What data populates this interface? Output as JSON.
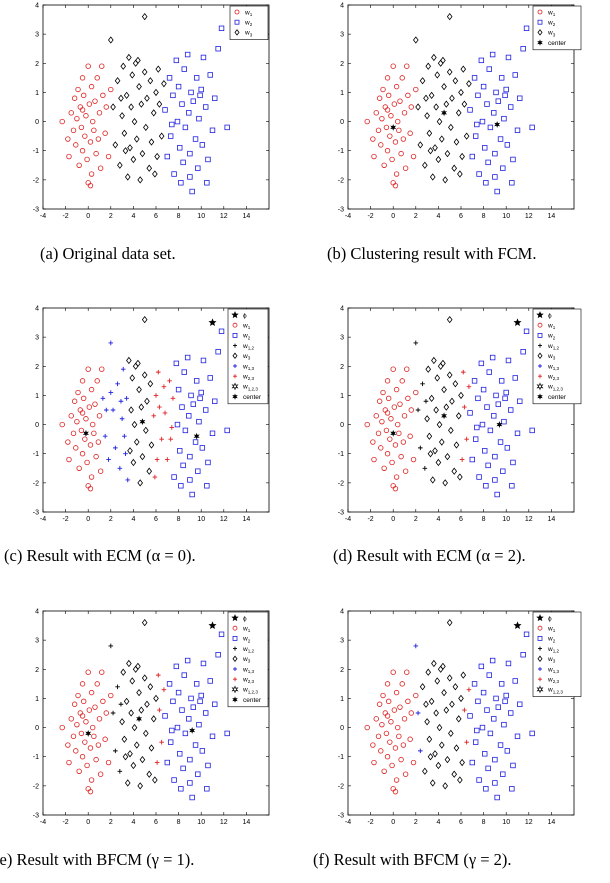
{
  "captions": [
    {
      "label": "(a)",
      "text": "Original data set."
    },
    {
      "label": "(b)",
      "text": "Clustering result with FCM."
    },
    {
      "label": "(c)",
      "text": "Result with ECM (α = 0)."
    },
    {
      "label": "(d)",
      "text": "Result with ECM (α = 2)."
    },
    {
      "label": "(e)",
      "text": "Result with BFCM (γ = 1)."
    },
    {
      "label": "(f)",
      "text": "Result with BFCM (γ = 2)."
    }
  ],
  "chart_data": [
    {
      "type": "scatter",
      "panel": "a",
      "xlim": [
        -4,
        16
      ],
      "ylim": [
        -3,
        4
      ],
      "xticks": [
        -4,
        -2,
        0,
        2,
        4,
        6,
        8,
        10,
        12,
        14
      ],
      "yticks": [
        -3,
        -2,
        -1,
        0,
        1,
        2,
        3,
        4
      ],
      "legend": [
        {
          "label": "w1",
          "sub": "1",
          "marker": "circle",
          "color": "#e02020"
        },
        {
          "label": "w2",
          "sub": "2",
          "marker": "square",
          "color": "#2020e0"
        },
        {
          "label": "w3",
          "sub": "3",
          "marker": "diamond",
          "color": "#000000"
        }
      ],
      "series": [
        {
          "name": "w1",
          "marker": "circle",
          "color": "#e02020",
          "points": [
            [
              -2.3,
              0
            ],
            [
              -1.8,
              -0.6
            ],
            [
              -1.7,
              -1.2
            ],
            [
              -1.5,
              0.3
            ],
            [
              -1.3,
              -0.3
            ],
            [
              -1.2,
              0.8
            ],
            [
              -1.1,
              -0.8
            ],
            [
              -1,
              0.1
            ],
            [
              -0.9,
              1.1
            ],
            [
              -0.8,
              -1.5
            ],
            [
              -0.7,
              0.5
            ],
            [
              -0.6,
              -0.2
            ],
            [
              -0.5,
              1.5
            ],
            [
              -0.5,
              -1
            ],
            [
              -0.4,
              0.9
            ],
            [
              -0.3,
              -0.5
            ],
            [
              -0.2,
              0.2
            ],
            [
              -0.1,
              -1.3
            ],
            [
              0,
              1.9
            ],
            [
              0,
              -2.1
            ],
            [
              0.1,
              0.6
            ],
            [
              0.2,
              -0.7
            ],
            [
              0.3,
              1.2
            ],
            [
              0.3,
              -1.8
            ],
            [
              0.4,
              0
            ],
            [
              0.5,
              -0.3
            ],
            [
              0.6,
              0.7
            ],
            [
              0.7,
              -1.1
            ],
            [
              0.8,
              1.5
            ],
            [
              0.9,
              -0.6
            ],
            [
              1,
              0.3
            ],
            [
              1.1,
              -1.6
            ],
            [
              1.2,
              1.9
            ],
            [
              1.3,
              0.9
            ],
            [
              1.5,
              -0.4
            ],
            [
              1.6,
              0.5
            ],
            [
              1.8,
              -1.2
            ],
            [
              2,
              1.1
            ],
            [
              -0.5,
              0.4
            ],
            [
              0.2,
              -2.2
            ]
          ]
        },
        {
          "name": "w2",
          "marker": "square",
          "color": "#2020e0",
          "points": [
            [
              6.8,
              0.4
            ],
            [
              7,
              -1.2
            ],
            [
              7.2,
              1.5
            ],
            [
              7.3,
              -0.5
            ],
            [
              7.5,
              0.9
            ],
            [
              7.6,
              -1.8
            ],
            [
              7.8,
              2.1
            ],
            [
              7.9,
              0
            ],
            [
              8,
              1.2
            ],
            [
              8.1,
              -0.9
            ],
            [
              8.3,
              0.6
            ],
            [
              8.4,
              -1.4
            ],
            [
              8.5,
              1.8
            ],
            [
              8.6,
              -0.2
            ],
            [
              8.8,
              2.3
            ],
            [
              8.9,
              0.3
            ],
            [
              9,
              -1.1
            ],
            [
              9.1,
              1
            ],
            [
              9.2,
              -2.4
            ],
            [
              9.3,
              0.7
            ],
            [
              9.5,
              -0.6
            ],
            [
              9.6,
              1.5
            ],
            [
              9.7,
              -1.6
            ],
            [
              9.8,
              0.1
            ],
            [
              10,
              1.1
            ],
            [
              10.1,
              -0.8
            ],
            [
              10.2,
              2.2
            ],
            [
              10.4,
              0.5
            ],
            [
              10.6,
              -1.3
            ],
            [
              10.8,
              1.6
            ],
            [
              11,
              -0.3
            ],
            [
              11.2,
              0.8
            ],
            [
              11.5,
              2.5
            ],
            [
              11.8,
              3.2
            ],
            [
              12.3,
              -0.2
            ],
            [
              10.5,
              -2.1
            ],
            [
              9,
              -1.9
            ],
            [
              8.2,
              -2.1
            ],
            [
              7.4,
              -0.1
            ],
            [
              9.9,
              0.9
            ]
          ]
        },
        {
          "name": "w3",
          "marker": "diamond",
          "color": "#000000",
          "points": [
            [
              2,
              2.8
            ],
            [
              2.2,
              0.5
            ],
            [
              2.4,
              -0.8
            ],
            [
              2.6,
              1.4
            ],
            [
              2.8,
              -1.5
            ],
            [
              3,
              0.2
            ],
            [
              3.1,
              1.9
            ],
            [
              3.2,
              -0.4
            ],
            [
              3.4,
              0.9
            ],
            [
              3.5,
              -1.9
            ],
            [
              3.6,
              2.2
            ],
            [
              3.7,
              -0.9
            ],
            [
              3.8,
              0.5
            ],
            [
              3.9,
              1.6
            ],
            [
              4,
              -1.3
            ],
            [
              4.1,
              0
            ],
            [
              4.2,
              2
            ],
            [
              4.3,
              -0.6
            ],
            [
              4.5,
              1.2
            ],
            [
              4.6,
              -2
            ],
            [
              4.7,
              0.6
            ],
            [
              4.8,
              -1.1
            ],
            [
              5,
              1.7
            ],
            [
              5.1,
              -0.2
            ],
            [
              5.2,
              0.8
            ],
            [
              5.4,
              -1.6
            ],
            [
              5.5,
              1.4
            ],
            [
              5.6,
              -0.7
            ],
            [
              5.8,
              0.3
            ],
            [
              6,
              1
            ],
            [
              6.1,
              -1.2
            ],
            [
              6.3,
              0.6
            ],
            [
              6.5,
              -0.5
            ],
            [
              6.7,
              1.3
            ],
            [
              5,
              3.6
            ],
            [
              4.4,
              2.1
            ],
            [
              3.3,
              -1
            ],
            [
              2.9,
              0.8
            ],
            [
              5.9,
              -1.8
            ],
            [
              6.2,
              1.8
            ]
          ]
        }
      ]
    },
    {
      "type": "scatter",
      "panel": "b",
      "xlim": [
        -4,
        16
      ],
      "ylim": [
        -3,
        4
      ],
      "legend": [
        {
          "label": "w1",
          "sub": "1",
          "marker": "circle",
          "color": "#e02020"
        },
        {
          "label": "w2",
          "sub": "2",
          "marker": "square",
          "color": "#2020e0"
        },
        {
          "label": "w3",
          "sub": "3",
          "marker": "diamond",
          "color": "#000000"
        },
        {
          "label": "center",
          "sub": "",
          "marker": "star6",
          "color": "#000000"
        }
      ],
      "centers": [
        [
          0,
          -0.2
        ],
        [
          4.5,
          0.3
        ],
        [
          9.2,
          -0.1
        ]
      ]
    },
    {
      "type": "scatter",
      "panel": "c",
      "xlim": [
        -4,
        16
      ],
      "ylim": [
        -3,
        4
      ],
      "legend": [
        {
          "label": "ϕ",
          "sub": "",
          "marker": "pentagram",
          "color": "#000000"
        },
        {
          "label": "w1",
          "sub": "1",
          "marker": "circle",
          "color": "#e02020"
        },
        {
          "label": "w2",
          "sub": "2",
          "marker": "square",
          "color": "#2020e0"
        },
        {
          "label": "w1,2",
          "sub": "1,2",
          "marker": "plus",
          "color": "#000000"
        },
        {
          "label": "w3",
          "sub": "3",
          "marker": "diamond",
          "color": "#000000"
        },
        {
          "label": "w1,3",
          "sub": "1,3",
          "marker": "plus",
          "color": "#2020e0"
        },
        {
          "label": "w2,3",
          "sub": "2,3",
          "marker": "plus",
          "color": "#e02020"
        },
        {
          "label": "w1,2,3",
          "sub": "1,2,3",
          "marker": "hexagram",
          "color": "#000000"
        },
        {
          "label": "center",
          "sub": "",
          "marker": "star6",
          "color": "#000000"
        }
      ],
      "outlier": [
        11,
        3.5
      ]
    },
    {
      "type": "scatter",
      "panel": "d",
      "xlim": [
        -4,
        16
      ],
      "ylim": [
        -3,
        4
      ],
      "outlier": [
        11,
        3.5
      ]
    },
    {
      "type": "scatter",
      "panel": "e",
      "xlim": [
        -4,
        16
      ],
      "ylim": [
        -3,
        4
      ],
      "outlier": [
        11,
        3.5
      ]
    },
    {
      "type": "scatter",
      "panel": "f",
      "xlim": [
        -4,
        16
      ],
      "ylim": [
        -3,
        4
      ],
      "outlier": [
        11,
        3.5
      ]
    }
  ]
}
